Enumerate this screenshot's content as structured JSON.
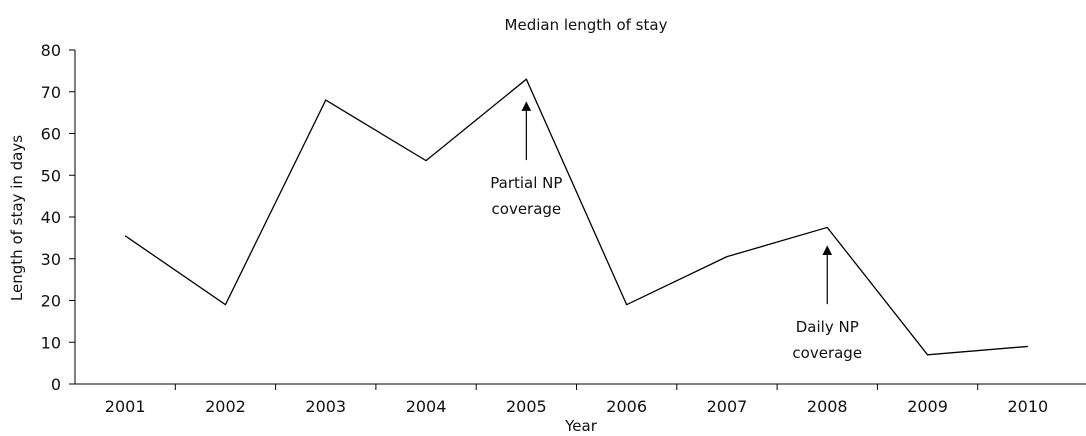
{
  "chart_data": {
    "type": "line",
    "title": "Median length of stay",
    "xlabel": "Year",
    "ylabel": "Length of stay in days",
    "categories": [
      "2001",
      "2002",
      "2003",
      "2004",
      "2005",
      "2006",
      "2007",
      "2008",
      "2009",
      "2010"
    ],
    "values": [
      35.5,
      19,
      68,
      53.5,
      73,
      19,
      30.5,
      37.5,
      7,
      9
    ],
    "ylim": [
      0,
      80
    ],
    "yticks": [
      0,
      10,
      20,
      30,
      40,
      50,
      60,
      70,
      80
    ],
    "grid": false,
    "annotations": [
      {
        "lines": [
          "Partial NP",
          "coverage"
        ],
        "category": "2005",
        "arrow_to": 68
      },
      {
        "lines": [
          "Daily NP",
          "coverage"
        ],
        "category": "2008",
        "arrow_to": 33.5
      }
    ],
    "line_color": "#000000"
  }
}
